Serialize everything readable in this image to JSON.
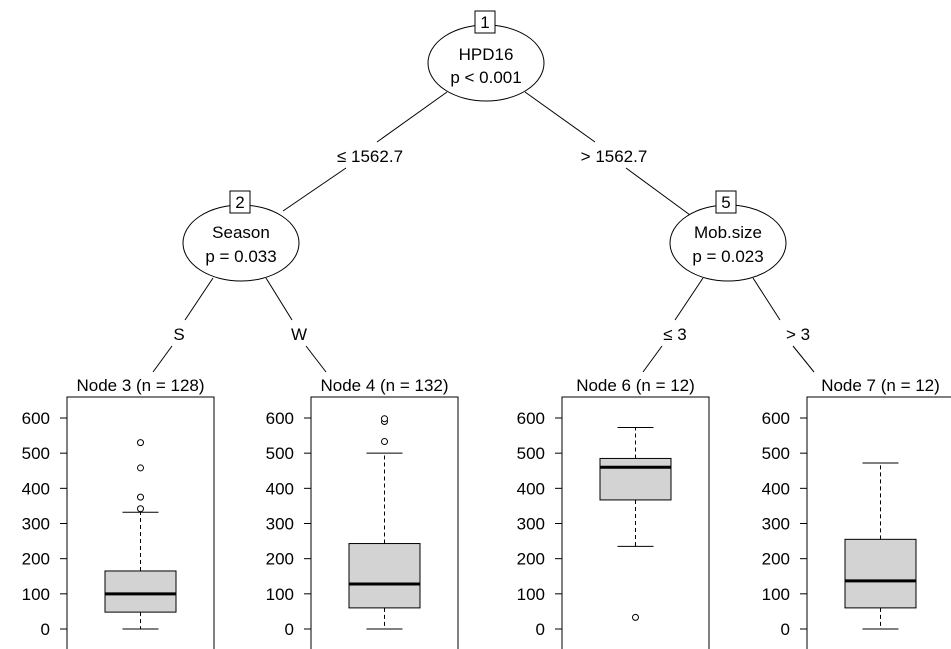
{
  "tree": {
    "inner_nodes": [
      {
        "id": "1",
        "variable": "HPD16",
        "p": "p < 0.001"
      },
      {
        "id": "2",
        "variable": "Season",
        "p": "p = 0.033"
      },
      {
        "id": "5",
        "variable": "Mob.size",
        "p": "p = 0.023"
      }
    ],
    "edges": [
      {
        "from": "1",
        "to": "2",
        "label": "≤ 1562.7"
      },
      {
        "from": "1",
        "to": "5",
        "label": "> 1562.7"
      },
      {
        "from": "2",
        "to": "3",
        "label": "S"
      },
      {
        "from": "2",
        "to": "4",
        "label": "W"
      },
      {
        "from": "5",
        "to": "6",
        "label": "≤ 3"
      },
      {
        "from": "5",
        "to": "7",
        "label": "> 3"
      }
    ],
    "terminal_nodes": [
      {
        "id": "3",
        "title": "Node 3 (n = 128)"
      },
      {
        "id": "4",
        "title": "Node 4 (n = 132)"
      },
      {
        "id": "6",
        "title": "Node 6 (n = 12)"
      },
      {
        "id": "7",
        "title": "Node 7 (n = 12)"
      }
    ]
  },
  "chart_data": {
    "type": "box",
    "y_ticks": [
      "0",
      "100",
      "200",
      "300",
      "400",
      "500",
      "600"
    ],
    "ylim": [
      0,
      600
    ],
    "boxes": [
      {
        "node": "3",
        "min": 0,
        "q1": 48,
        "median": 100,
        "q3": 165,
        "max": 332,
        "outliers": [
          342,
          375,
          458,
          530
        ]
      },
      {
        "node": "4",
        "min": 0,
        "q1": 60,
        "median": 128,
        "q3": 243,
        "max": 500,
        "outliers": [
          533,
          590,
          598
        ]
      },
      {
        "node": "6",
        "min": 235,
        "q1": 367,
        "median": 460,
        "q3": 485,
        "max": 573,
        "outliers": [
          33
        ]
      },
      {
        "node": "7",
        "min": 0,
        "q1": 60,
        "median": 137,
        "q3": 255,
        "max": 472,
        "outliers": []
      }
    ],
    "box_fill": "#d3d3d3"
  }
}
